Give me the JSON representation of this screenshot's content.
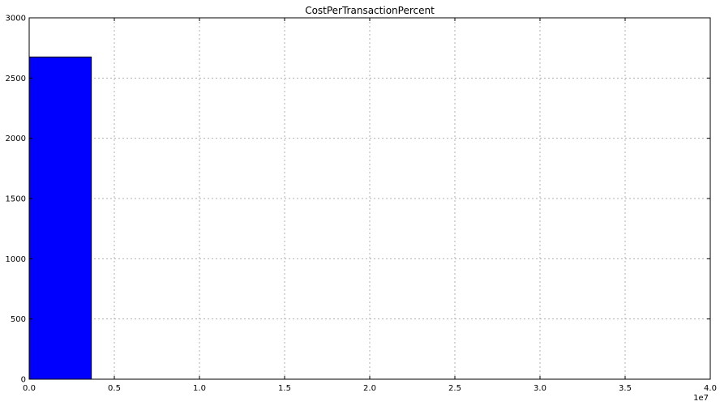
{
  "chart_data": {
    "type": "bar",
    "title": "CostPerTransactionPercent",
    "xlabel": "",
    "ylabel": "",
    "x_offset_label": "1e7",
    "xlim": [
      0,
      40000000
    ],
    "ylim": [
      0,
      3000
    ],
    "x_ticks": [
      0,
      5000000,
      10000000,
      15000000,
      20000000,
      25000000,
      30000000,
      35000000,
      40000000
    ],
    "x_tick_labels": [
      "0.0",
      "0.5",
      "1.0",
      "1.5",
      "2.0",
      "2.5",
      "3.0",
      "3.5",
      "4.0"
    ],
    "y_ticks": [
      0,
      500,
      1000,
      1500,
      2000,
      2500,
      3000
    ],
    "y_tick_labels": [
      "0",
      "500",
      "1000",
      "1500",
      "2000",
      "2500",
      "3000"
    ],
    "grid": true,
    "bins": [
      {
        "x_start": 0,
        "x_end": 3650000,
        "count": 2675
      }
    ],
    "bar_color": "#0000ff"
  }
}
